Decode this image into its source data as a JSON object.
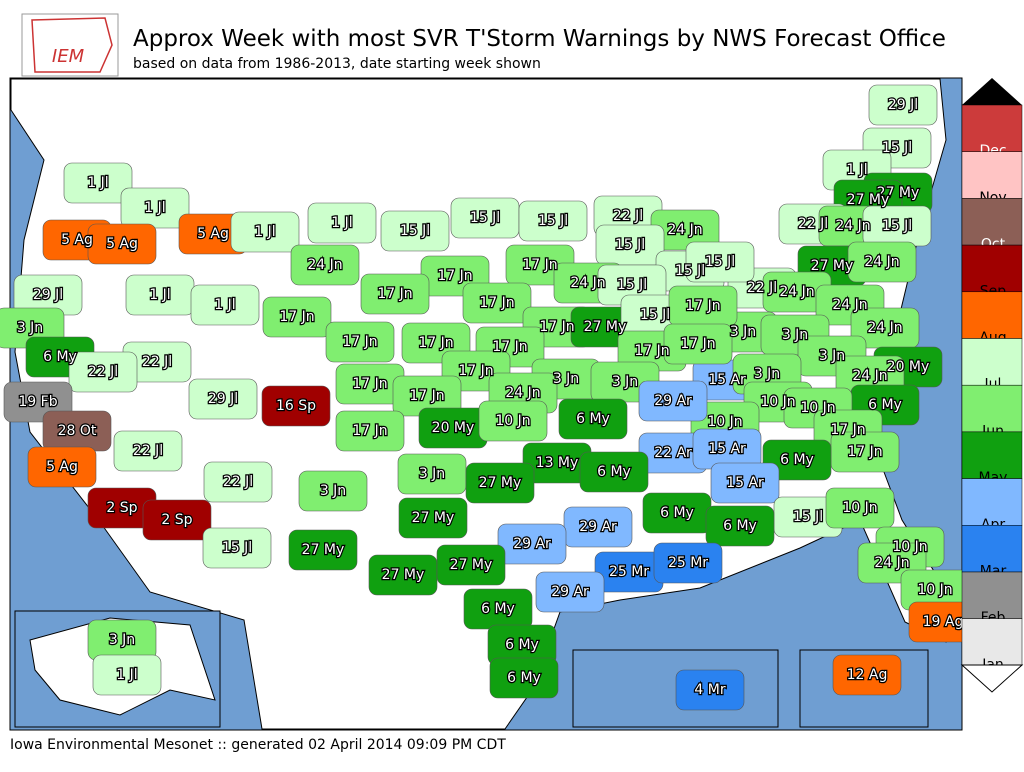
{
  "header": {
    "logo": "IEM",
    "title": "Approx Week with most SVR T'Storm Warnings by NWS Forecast Office",
    "subtitle": "based on data from 1986-2013, date starting week shown"
  },
  "legend": [
    {
      "label": "Dec",
      "color": "#cc3b3b"
    },
    {
      "label": "Nov",
      "color": "#ffc4c4"
    },
    {
      "label": "Oct",
      "color": "#8c5f56"
    },
    {
      "label": "Sep",
      "color": "#a00000"
    },
    {
      "label": "Aug",
      "color": "#ff6600"
    },
    {
      "label": "Jul",
      "color": "#ccffcc"
    },
    {
      "label": "Jun",
      "color": "#80ee70"
    },
    {
      "label": "May",
      "color": "#10a010"
    },
    {
      "label": "Apr",
      "color": "#80b8ff"
    },
    {
      "label": "Mar",
      "color": "#2a82f0"
    },
    {
      "label": "Feb",
      "color": "#909090"
    },
    {
      "label": "Jan",
      "color": "#e8e8e8"
    }
  ],
  "regions": [
    {
      "label": "29 Jl",
      "color": "#ccffcc"
    },
    {
      "label": "15 Jl",
      "color": "#ccffcc"
    },
    {
      "label": "1 Jl",
      "color": "#ccffcc"
    },
    {
      "label": "27 My",
      "color": "#10a010"
    },
    {
      "label": "27 My",
      "color": "#10a010"
    },
    {
      "label": "22 Jl",
      "color": "#ccffcc"
    },
    {
      "label": "24 Jn",
      "color": "#80ee70"
    },
    {
      "label": "15 Jl",
      "color": "#ccffcc"
    },
    {
      "label": "27 My",
      "color": "#10a010"
    },
    {
      "label": "24 Jn",
      "color": "#80ee70"
    },
    {
      "label": "22 Jl",
      "color": "#ccffcc"
    },
    {
      "label": "24 Jn",
      "color": "#80ee70"
    },
    {
      "label": "24 Jn",
      "color": "#80ee70"
    },
    {
      "label": "24 Jn",
      "color": "#80ee70"
    },
    {
      "label": "3 Jn",
      "color": "#80ee70"
    },
    {
      "label": "3 Jn",
      "color": "#80ee70"
    },
    {
      "label": "3 Jn",
      "color": "#80ee70"
    },
    {
      "label": "20 My",
      "color": "#10a010"
    },
    {
      "label": "24 Jn",
      "color": "#80ee70"
    },
    {
      "label": "15 Ar",
      "color": "#80b8ff"
    },
    {
      "label": "3 Jn",
      "color": "#80ee70"
    },
    {
      "label": "6 My",
      "color": "#10a010"
    },
    {
      "label": "10 Jn",
      "color": "#80ee70"
    },
    {
      "label": "10 Jn",
      "color": "#80ee70"
    },
    {
      "label": "10 Jn",
      "color": "#80ee70"
    },
    {
      "label": "17 Jn",
      "color": "#80ee70"
    },
    {
      "label": "17 Jn",
      "color": "#80ee70"
    },
    {
      "label": "22 Ar",
      "color": "#80b8ff"
    },
    {
      "label": "15 Ar",
      "color": "#80b8ff"
    },
    {
      "label": "6 My",
      "color": "#10a010"
    },
    {
      "label": "15 Ar",
      "color": "#80b8ff"
    },
    {
      "label": "15 Jl",
      "color": "#ccffcc"
    },
    {
      "label": "10 Jn",
      "color": "#80ee70"
    },
    {
      "label": "10 Jn",
      "color": "#80ee70"
    },
    {
      "label": "24 Jn",
      "color": "#80ee70"
    },
    {
      "label": "10 Jn",
      "color": "#80ee70"
    },
    {
      "label": "19 Ag",
      "color": "#ff6600"
    },
    {
      "label": "1 Jl",
      "color": "#ccffcc"
    },
    {
      "label": "1 Jl",
      "color": "#ccffcc"
    },
    {
      "label": "5 Ag",
      "color": "#ff6600"
    },
    {
      "label": "1 Jl",
      "color": "#ccffcc"
    },
    {
      "label": "1 Jl",
      "color": "#ccffcc"
    },
    {
      "label": "15 Jl",
      "color": "#ccffcc"
    },
    {
      "label": "15 Jl",
      "color": "#ccffcc"
    },
    {
      "label": "15 Jl",
      "color": "#ccffcc"
    },
    {
      "label": "22 Jl",
      "color": "#ccffcc"
    },
    {
      "label": "24 Jn",
      "color": "#80ee70"
    },
    {
      "label": "15 Jl",
      "color": "#ccffcc"
    },
    {
      "label": "15 Jl",
      "color": "#ccffcc"
    },
    {
      "label": "15 Jl",
      "color": "#ccffcc"
    },
    {
      "label": "5 Ag",
      "color": "#ff6600"
    },
    {
      "label": "5 Ag",
      "color": "#ff6600"
    },
    {
      "label": "24 Jn",
      "color": "#80ee70"
    },
    {
      "label": "17 Jn",
      "color": "#80ee70"
    },
    {
      "label": "17 Jn",
      "color": "#80ee70"
    },
    {
      "label": "24 Jn",
      "color": "#80ee70"
    },
    {
      "label": "15 Jl",
      "color": "#ccffcc"
    },
    {
      "label": "17 Jn",
      "color": "#80ee70"
    },
    {
      "label": "17 Jn",
      "color": "#80ee70"
    },
    {
      "label": "29 Jl",
      "color": "#ccffcc"
    },
    {
      "label": "1 Jl",
      "color": "#ccffcc"
    },
    {
      "label": "1 Jl",
      "color": "#ccffcc"
    },
    {
      "label": "17 Jn",
      "color": "#80ee70"
    },
    {
      "label": "17 Jn",
      "color": "#80ee70"
    },
    {
      "label": "27 My",
      "color": "#10a010"
    },
    {
      "label": "15 Jl",
      "color": "#ccffcc"
    },
    {
      "label": "17 Jn",
      "color": "#80ee70"
    },
    {
      "label": "3 Jn",
      "color": "#80ee70"
    },
    {
      "label": "17 Jn",
      "color": "#80ee70"
    },
    {
      "label": "17 Jn",
      "color": "#80ee70"
    },
    {
      "label": "17 Jn",
      "color": "#80ee70"
    },
    {
      "label": "17 Jn",
      "color": "#80ee70"
    },
    {
      "label": "17 Jn",
      "color": "#80ee70"
    },
    {
      "label": "6 My",
      "color": "#10a010"
    },
    {
      "label": "22 Jl",
      "color": "#ccffcc"
    },
    {
      "label": "22 Jl",
      "color": "#ccffcc"
    },
    {
      "label": "17 Jn",
      "color": "#80ee70"
    },
    {
      "label": "17 Jn",
      "color": "#80ee70"
    },
    {
      "label": "3 Jn",
      "color": "#80ee70"
    },
    {
      "label": "3 Jn",
      "color": "#80ee70"
    },
    {
      "label": "29 Jl",
      "color": "#ccffcc"
    },
    {
      "label": "16 Sp",
      "color": "#a00000"
    },
    {
      "label": "17 Jn",
      "color": "#80ee70"
    },
    {
      "label": "24 Jn",
      "color": "#80ee70"
    },
    {
      "label": "29 Ar",
      "color": "#80b8ff"
    },
    {
      "label": "19 Fb",
      "color": "#909090"
    },
    {
      "label": "28 Ot",
      "color": "#8c5f56"
    },
    {
      "label": "17 Jn",
      "color": "#80ee70"
    },
    {
      "label": "20 My",
      "color": "#10a010"
    },
    {
      "label": "10 Jn",
      "color": "#80ee70"
    },
    {
      "label": "6 My",
      "color": "#10a010"
    },
    {
      "label": "22 Jl",
      "color": "#ccffcc"
    },
    {
      "label": "3 Jn",
      "color": "#80ee70"
    },
    {
      "label": "13 My",
      "color": "#10a010"
    },
    {
      "label": "6 My",
      "color": "#10a010"
    },
    {
      "label": "5 Ag",
      "color": "#ff6600"
    },
    {
      "label": "27 My",
      "color": "#10a010"
    },
    {
      "label": "22 Jl",
      "color": "#ccffcc"
    },
    {
      "label": "3 Jn",
      "color": "#80ee70"
    },
    {
      "label": "2 Sp",
      "color": "#a00000"
    },
    {
      "label": "2 Sp",
      "color": "#a00000"
    },
    {
      "label": "6 My",
      "color": "#10a010"
    },
    {
      "label": "6 My",
      "color": "#10a010"
    },
    {
      "label": "29 Ar",
      "color": "#80b8ff"
    },
    {
      "label": "27 My",
      "color": "#10a010"
    },
    {
      "label": "29 Ar",
      "color": "#80b8ff"
    },
    {
      "label": "15 Jl",
      "color": "#ccffcc"
    },
    {
      "label": "27 My",
      "color": "#10a010"
    },
    {
      "label": "27 My",
      "color": "#10a010"
    },
    {
      "label": "27 My",
      "color": "#10a010"
    },
    {
      "label": "25 Mr",
      "color": "#2a82f0"
    },
    {
      "label": "25 Mr",
      "color": "#2a82f0"
    },
    {
      "label": "29 Ar",
      "color": "#80b8ff"
    },
    {
      "label": "6 My",
      "color": "#10a010"
    },
    {
      "label": "6 My",
      "color": "#10a010"
    },
    {
      "label": "6 My",
      "color": "#10a010"
    },
    {
      "label": "3 Jn",
      "color": "#80ee70"
    },
    {
      "label": "1 Jl",
      "color": "#ccffcc"
    },
    {
      "label": "4 Mr",
      "color": "#2a82f0"
    },
    {
      "label": "12 Ag",
      "color": "#ff6600"
    }
  ],
  "footer": "Iowa Environmental Mesonet :: generated 02 April 2014 09:09 PM CDT"
}
